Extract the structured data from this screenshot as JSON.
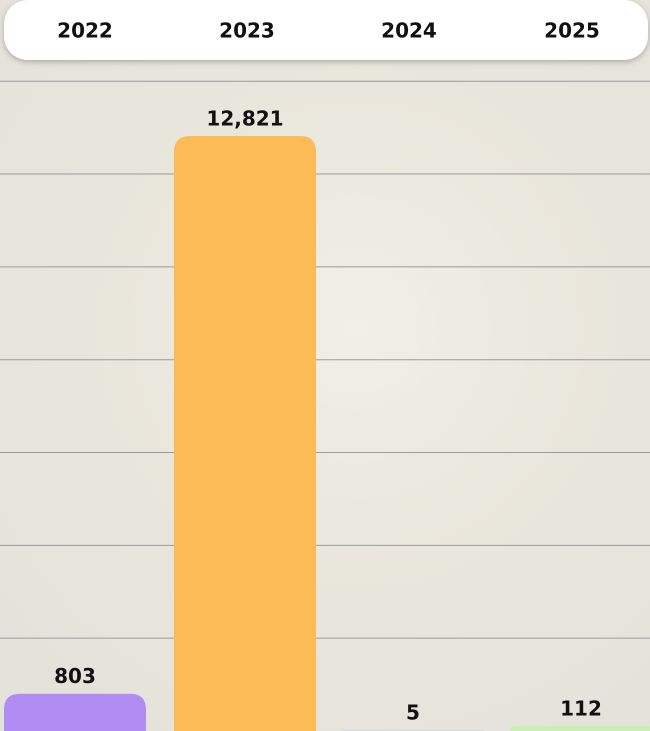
{
  "chart_data": {
    "type": "bar",
    "categories": [
      "2022",
      "2023",
      "2024",
      "2025"
    ],
    "values": [
      803,
      12821,
      5,
      112
    ],
    "value_labels": [
      "803",
      "12,821",
      "5",
      "112"
    ],
    "colors": [
      "#b18cf2",
      "#fdbb55",
      "#9ec3f0",
      "#c9efb2"
    ],
    "ylim": [
      0,
      15750
    ],
    "yticks": [
      2000,
      4000,
      6000,
      8000,
      10000,
      12000,
      14000
    ],
    "grid": true
  }
}
